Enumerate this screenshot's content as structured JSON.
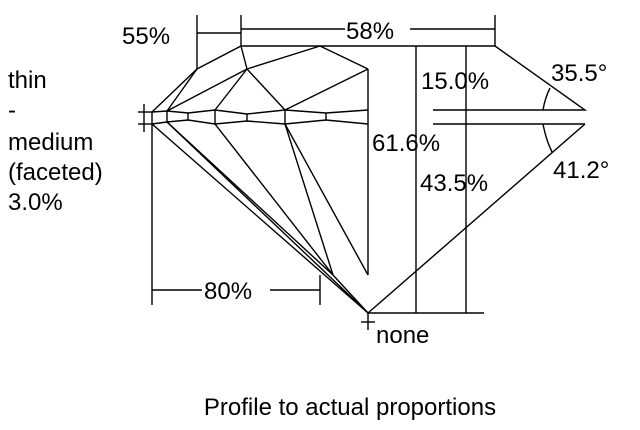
{
  "diagram": {
    "girdle_label": [
      "thin",
      "-",
      "medium",
      "(faceted)",
      "3.0%"
    ],
    "lower_half": "55%",
    "table": "58%",
    "crown_height": "15.0%",
    "crown_angle": "35.5°",
    "total_depth": "61.6%",
    "pavilion_angle": "41.2°",
    "pavilion_depth": "43.5%",
    "lower_girdle": "80%",
    "culet": "none",
    "caption": "Profile to actual proportions"
  },
  "colors": {
    "line": "#000000",
    "background": "#ffffff"
  }
}
